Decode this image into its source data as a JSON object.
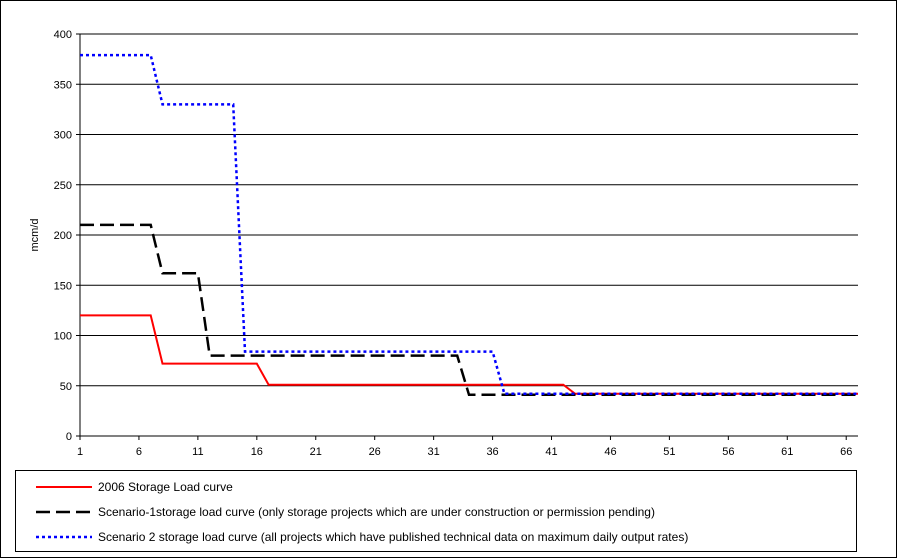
{
  "chart_data": {
    "type": "line",
    "title": "",
    "xlabel": "",
    "ylabel": "mcm/d",
    "xlim": [
      1,
      67
    ],
    "ylim": [
      0,
      400
    ],
    "x_ticks": [
      1,
      6,
      11,
      16,
      21,
      26,
      31,
      36,
      41,
      46,
      51,
      56,
      61,
      66
    ],
    "y_ticks": [
      0,
      50,
      100,
      150,
      200,
      250,
      300,
      350,
      400
    ],
    "grid": "horizontal",
    "legend_position": "bottom",
    "series": [
      {
        "name": "2006 Storage Load curve",
        "color": "#ff0000",
        "style": "solid",
        "points": [
          [
            1,
            120
          ],
          [
            7,
            120
          ],
          [
            8,
            72
          ],
          [
            16,
            72
          ],
          [
            17,
            51
          ],
          [
            42,
            51
          ],
          [
            43,
            42
          ],
          [
            67,
            42
          ]
        ]
      },
      {
        "name": "Scenario-1storage  load curve (only storage projects which are under construction  or permission pending)",
        "color": "#000000",
        "style": "dashed",
        "points": [
          [
            1,
            210
          ],
          [
            7,
            210
          ],
          [
            8,
            162
          ],
          [
            11,
            162
          ],
          [
            12,
            80
          ],
          [
            33,
            80
          ],
          [
            34,
            41
          ],
          [
            67,
            41
          ]
        ]
      },
      {
        "name": "Scenario 2 storage load curve (all projects which have published technical data on maximum daily output rates)",
        "color": "#0000ff",
        "style": "dotted",
        "points": [
          [
            1,
            379
          ],
          [
            7,
            379
          ],
          [
            8,
            330
          ],
          [
            14,
            330
          ],
          [
            15,
            84
          ],
          [
            36,
            84
          ],
          [
            37,
            42
          ],
          [
            67,
            42
          ]
        ]
      }
    ]
  }
}
